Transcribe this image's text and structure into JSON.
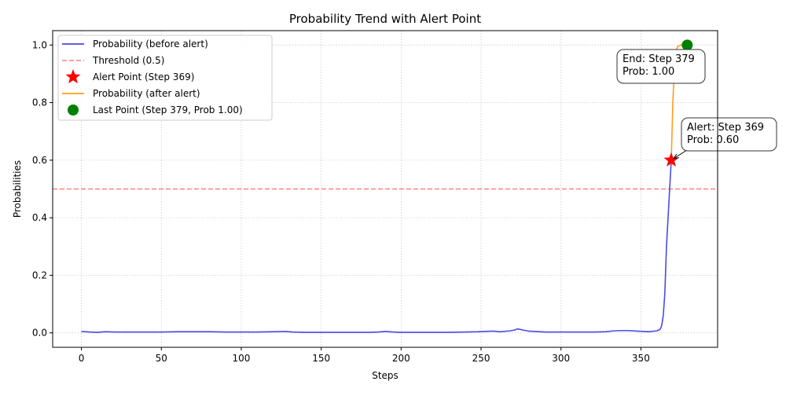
{
  "chart_data": {
    "type": "line",
    "title": "Probability Trend with Alert Point",
    "xlabel": "Steps",
    "ylabel": "Probabilities",
    "xlim": [
      -18,
      398
    ],
    "ylim": [
      -0.05,
      1.05
    ],
    "xticks": [
      0,
      50,
      100,
      150,
      200,
      250,
      300,
      350
    ],
    "yticks": [
      0.0,
      0.2,
      0.4,
      0.6,
      0.8,
      1.0
    ],
    "xtick_labels": [
      "0",
      "50",
      "100",
      "150",
      "200",
      "250",
      "300",
      "350"
    ],
    "ytick_labels": [
      "0.0",
      "0.2",
      "0.4",
      "0.6",
      "0.8",
      "1.0"
    ],
    "grid": true,
    "legend_position": "upper-left",
    "threshold": {
      "label": "Threshold (0.5)",
      "value": 0.5,
      "color": "#ff7f7f"
    },
    "series": [
      {
        "name": "Probability (before alert)",
        "color": "#4a4ae6",
        "points": [
          [
            0,
            0.005
          ],
          [
            5,
            0.003
          ],
          [
            10,
            0.002
          ],
          [
            15,
            0.004
          ],
          [
            20,
            0.003
          ],
          [
            30,
            0.003
          ],
          [
            40,
            0.003
          ],
          [
            50,
            0.003
          ],
          [
            60,
            0.004
          ],
          [
            70,
            0.004
          ],
          [
            80,
            0.004
          ],
          [
            90,
            0.003
          ],
          [
            100,
            0.003
          ],
          [
            110,
            0.003
          ],
          [
            120,
            0.004
          ],
          [
            128,
            0.005
          ],
          [
            132,
            0.003
          ],
          [
            140,
            0.002
          ],
          [
            150,
            0.002
          ],
          [
            160,
            0.002
          ],
          [
            170,
            0.002
          ],
          [
            180,
            0.002
          ],
          [
            186,
            0.003
          ],
          [
            190,
            0.005
          ],
          [
            195,
            0.003
          ],
          [
            200,
            0.002
          ],
          [
            210,
            0.002
          ],
          [
            220,
            0.002
          ],
          [
            230,
            0.002
          ],
          [
            240,
            0.003
          ],
          [
            248,
            0.004
          ],
          [
            252,
            0.005
          ],
          [
            258,
            0.006
          ],
          [
            262,
            0.004
          ],
          [
            268,
            0.007
          ],
          [
            271,
            0.01
          ],
          [
            273,
            0.014
          ],
          [
            276,
            0.01
          ],
          [
            280,
            0.006
          ],
          [
            290,
            0.003
          ],
          [
            300,
            0.003
          ],
          [
            310,
            0.003
          ],
          [
            320,
            0.003
          ],
          [
            328,
            0.004
          ],
          [
            333,
            0.007
          ],
          [
            337,
            0.008
          ],
          [
            342,
            0.008
          ],
          [
            348,
            0.006
          ],
          [
            355,
            0.004
          ],
          [
            360,
            0.007
          ],
          [
            362,
            0.012
          ],
          [
            363,
            0.025
          ],
          [
            364,
            0.06
          ],
          [
            365,
            0.14
          ],
          [
            366,
            0.3
          ],
          [
            367,
            0.4
          ],
          [
            368,
            0.5
          ],
          [
            369,
            0.6
          ]
        ]
      },
      {
        "name": "Probability (after alert)",
        "color": "#ff9d1c",
        "points": [
          [
            369,
            0.6
          ],
          [
            370,
            0.8
          ],
          [
            371,
            0.93
          ],
          [
            372,
            0.98
          ],
          [
            373,
            0.995
          ],
          [
            375,
            1.0
          ],
          [
            377,
            1.0
          ],
          [
            379,
            1.0
          ]
        ]
      }
    ],
    "alert_point": {
      "name": "Alert Point (Step 369)",
      "x": 369,
      "y": 0.6,
      "color": "#ff0000",
      "annotation": [
        "Alert: Step 369",
        "Prob: 0.60"
      ]
    },
    "last_point": {
      "name": "Last Point (Step 379, Prob 1.00)",
      "x": 379,
      "y": 1.0,
      "color": "#008000",
      "annotation": [
        "End: Step 379",
        "Prob: 1.00"
      ]
    }
  }
}
